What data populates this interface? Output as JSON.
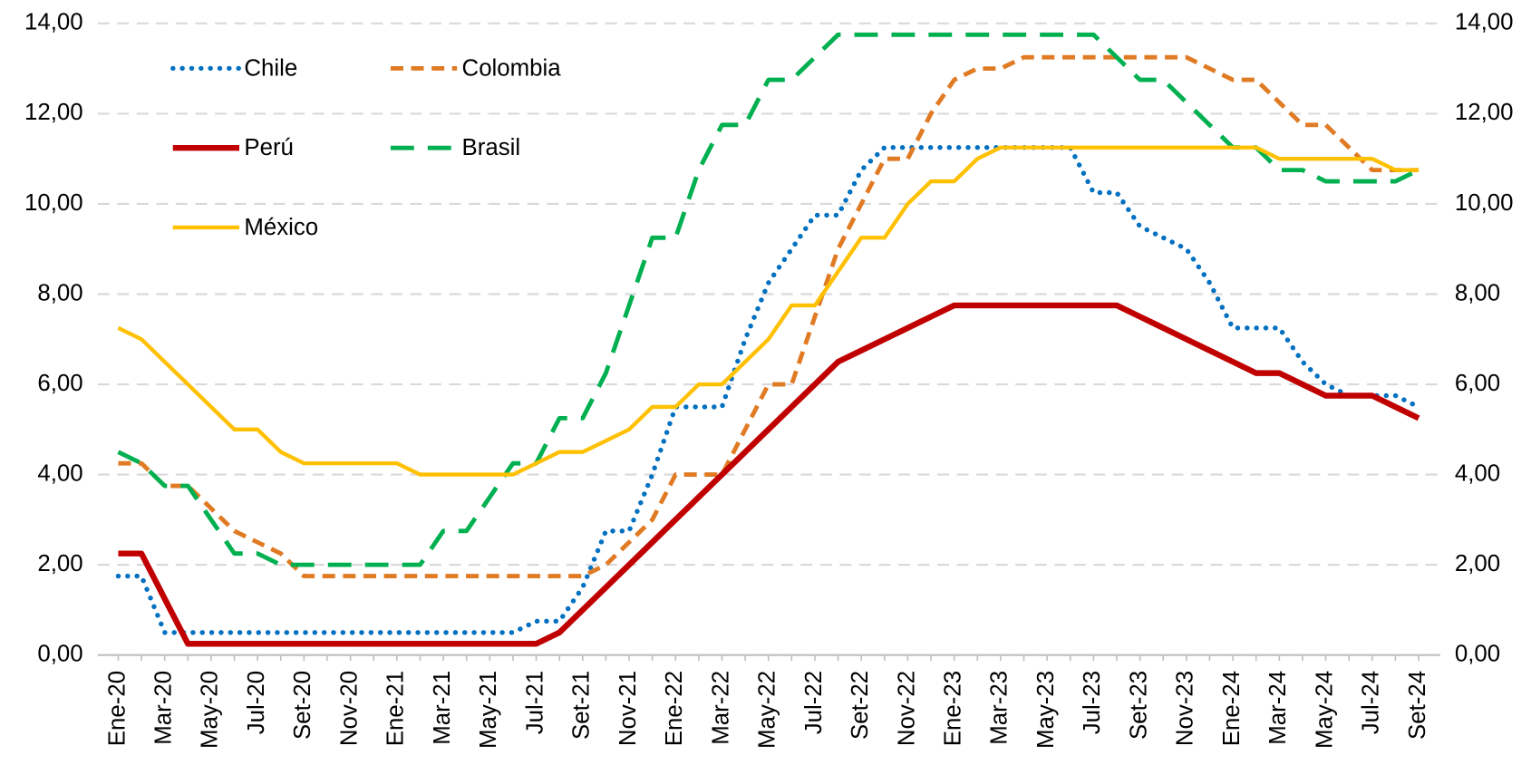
{
  "chart_data": {
    "type": "line",
    "categories": [
      "Ene-20",
      null,
      "Mar-20",
      null,
      "May-20",
      null,
      "Jul-20",
      null,
      "Set-20",
      null,
      "Nov-20",
      null,
      "Ene-21",
      null,
      "Mar-21",
      null,
      "May-21",
      null,
      "Jul-21",
      null,
      "Set-21",
      null,
      "Nov-21",
      null,
      "Ene-22",
      null,
      "Mar-22",
      null,
      "May-22",
      null,
      "Jul-22",
      null,
      "Set-22",
      null,
      "Nov-22",
      null,
      "Ene-23",
      null,
      "Mar-23",
      null,
      "May-23",
      null,
      "Jul-23",
      null,
      "Set-23",
      null,
      "Nov-23",
      null,
      "Ene-24",
      null,
      "Mar-24",
      null,
      "May-24",
      null,
      "Jul-24",
      null,
      "Set-24"
    ],
    "series": [
      {
        "name": "Chile",
        "color": "#0070c0",
        "style": "dotted",
        "values": [
          1.75,
          1.75,
          0.5,
          0.5,
          0.5,
          0.5,
          0.5,
          0.5,
          0.5,
          0.5,
          0.5,
          0.5,
          0.5,
          0.5,
          0.5,
          0.5,
          0.5,
          0.5,
          0.75,
          0.75,
          1.5,
          2.75,
          2.75,
          4.0,
          5.5,
          5.5,
          5.5,
          7.0,
          8.25,
          9.0,
          9.75,
          9.75,
          10.75,
          11.25,
          11.25,
          11.25,
          11.25,
          11.25,
          11.25,
          11.25,
          11.25,
          11.25,
          10.25,
          10.25,
          9.5,
          9.25,
          9.0,
          8.25,
          7.25,
          7.25,
          7.25,
          6.5,
          6.0,
          5.75,
          5.75,
          5.75,
          5.5
        ]
      },
      {
        "name": "Colombia",
        "color": "#e07b24",
        "style": "dashed",
        "values": [
          4.25,
          4.25,
          3.75,
          3.75,
          3.25,
          2.75,
          2.5,
          2.25,
          1.75,
          1.75,
          1.75,
          1.75,
          1.75,
          1.75,
          1.75,
          1.75,
          1.75,
          1.75,
          1.75,
          1.75,
          1.75,
          2.0,
          2.5,
          3.0,
          4.0,
          4.0,
          4.0,
          5.0,
          6.0,
          6.0,
          7.5,
          9.0,
          10.0,
          11.0,
          11.0,
          12.0,
          12.75,
          13.0,
          13.0,
          13.25,
          13.25,
          13.25,
          13.25,
          13.25,
          13.25,
          13.25,
          13.25,
          13.0,
          12.75,
          12.75,
          12.25,
          11.75,
          11.75,
          11.25,
          10.75,
          10.75,
          10.75
        ]
      },
      {
        "name": "Perú",
        "color": "#c00000",
        "style": "solid",
        "values": [
          2.25,
          2.25,
          1.25,
          0.25,
          0.25,
          0.25,
          0.25,
          0.25,
          0.25,
          0.25,
          0.25,
          0.25,
          0.25,
          0.25,
          0.25,
          0.25,
          0.25,
          0.25,
          0.25,
          0.5,
          1.0,
          1.5,
          2.0,
          2.5,
          3.0,
          3.5,
          4.0,
          4.5,
          5.0,
          5.5,
          6.0,
          6.5,
          6.75,
          7.0,
          7.25,
          7.5,
          7.75,
          7.75,
          7.75,
          7.75,
          7.75,
          7.75,
          7.75,
          7.75,
          7.5,
          7.25,
          7.0,
          6.75,
          6.5,
          6.25,
          6.25,
          6.0,
          5.75,
          5.75,
          5.75,
          5.5,
          5.25
        ]
      },
      {
        "name": "Brasil",
        "color": "#00b050",
        "style": "long-dashed",
        "values": [
          4.5,
          4.25,
          3.75,
          3.75,
          3.0,
          2.25,
          2.25,
          2.0,
          2.0,
          2.0,
          2.0,
          2.0,
          2.0,
          2.0,
          2.75,
          2.75,
          3.5,
          4.25,
          4.25,
          5.25,
          5.25,
          6.25,
          7.75,
          9.25,
          9.25,
          10.75,
          11.75,
          11.75,
          12.75,
          12.75,
          13.25,
          13.75,
          13.75,
          13.75,
          13.75,
          13.75,
          13.75,
          13.75,
          13.75,
          13.75,
          13.75,
          13.75,
          13.75,
          13.25,
          12.75,
          12.75,
          12.25,
          11.75,
          11.25,
          11.25,
          10.75,
          10.75,
          10.5,
          10.5,
          10.5,
          10.5,
          10.75
        ]
      },
      {
        "name": "México",
        "color": "#ffc000",
        "style": "solid",
        "values": [
          7.25,
          7.0,
          6.5,
          6.0,
          5.5,
          5.0,
          5.0,
          4.5,
          4.25,
          4.25,
          4.25,
          4.25,
          4.25,
          4.0,
          4.0,
          4.0,
          4.0,
          4.0,
          4.25,
          4.5,
          4.5,
          4.75,
          5.0,
          5.5,
          5.5,
          6.0,
          6.0,
          6.5,
          7.0,
          7.75,
          7.75,
          8.5,
          9.25,
          9.25,
          10.0,
          10.5,
          10.5,
          11.0,
          11.25,
          11.25,
          11.25,
          11.25,
          11.25,
          11.25,
          11.25,
          11.25,
          11.25,
          11.25,
          11.25,
          11.25,
          11.0,
          11.0,
          11.0,
          11.0,
          11.0,
          10.75,
          10.75
        ]
      }
    ],
    "ylim": [
      0,
      14
    ],
    "yticks": [
      {
        "value": 0,
        "label": "0,00"
      },
      {
        "value": 2,
        "label": "2,00"
      },
      {
        "value": 4,
        "label": "4,00"
      },
      {
        "value": 6,
        "label": "6,00"
      },
      {
        "value": 8,
        "label": "8,00"
      },
      {
        "value": 10,
        "label": "10,00"
      },
      {
        "value": 12,
        "label": "12,00"
      },
      {
        "value": 14,
        "label": "14,00"
      }
    ],
    "y2lim": [
      0,
      14
    ],
    "y2ticks": [
      {
        "value": 0,
        "label": "0,00"
      },
      {
        "value": 2,
        "label": "2,00"
      },
      {
        "value": 4,
        "label": "4,00"
      },
      {
        "value": 6,
        "label": "6,00"
      },
      {
        "value": 8,
        "label": "8,00"
      },
      {
        "value": 10,
        "label": "10,00"
      },
      {
        "value": 12,
        "label": "12,00"
      },
      {
        "value": 14,
        "label": "14,00"
      }
    ],
    "grid": true,
    "legend": "upper left"
  }
}
